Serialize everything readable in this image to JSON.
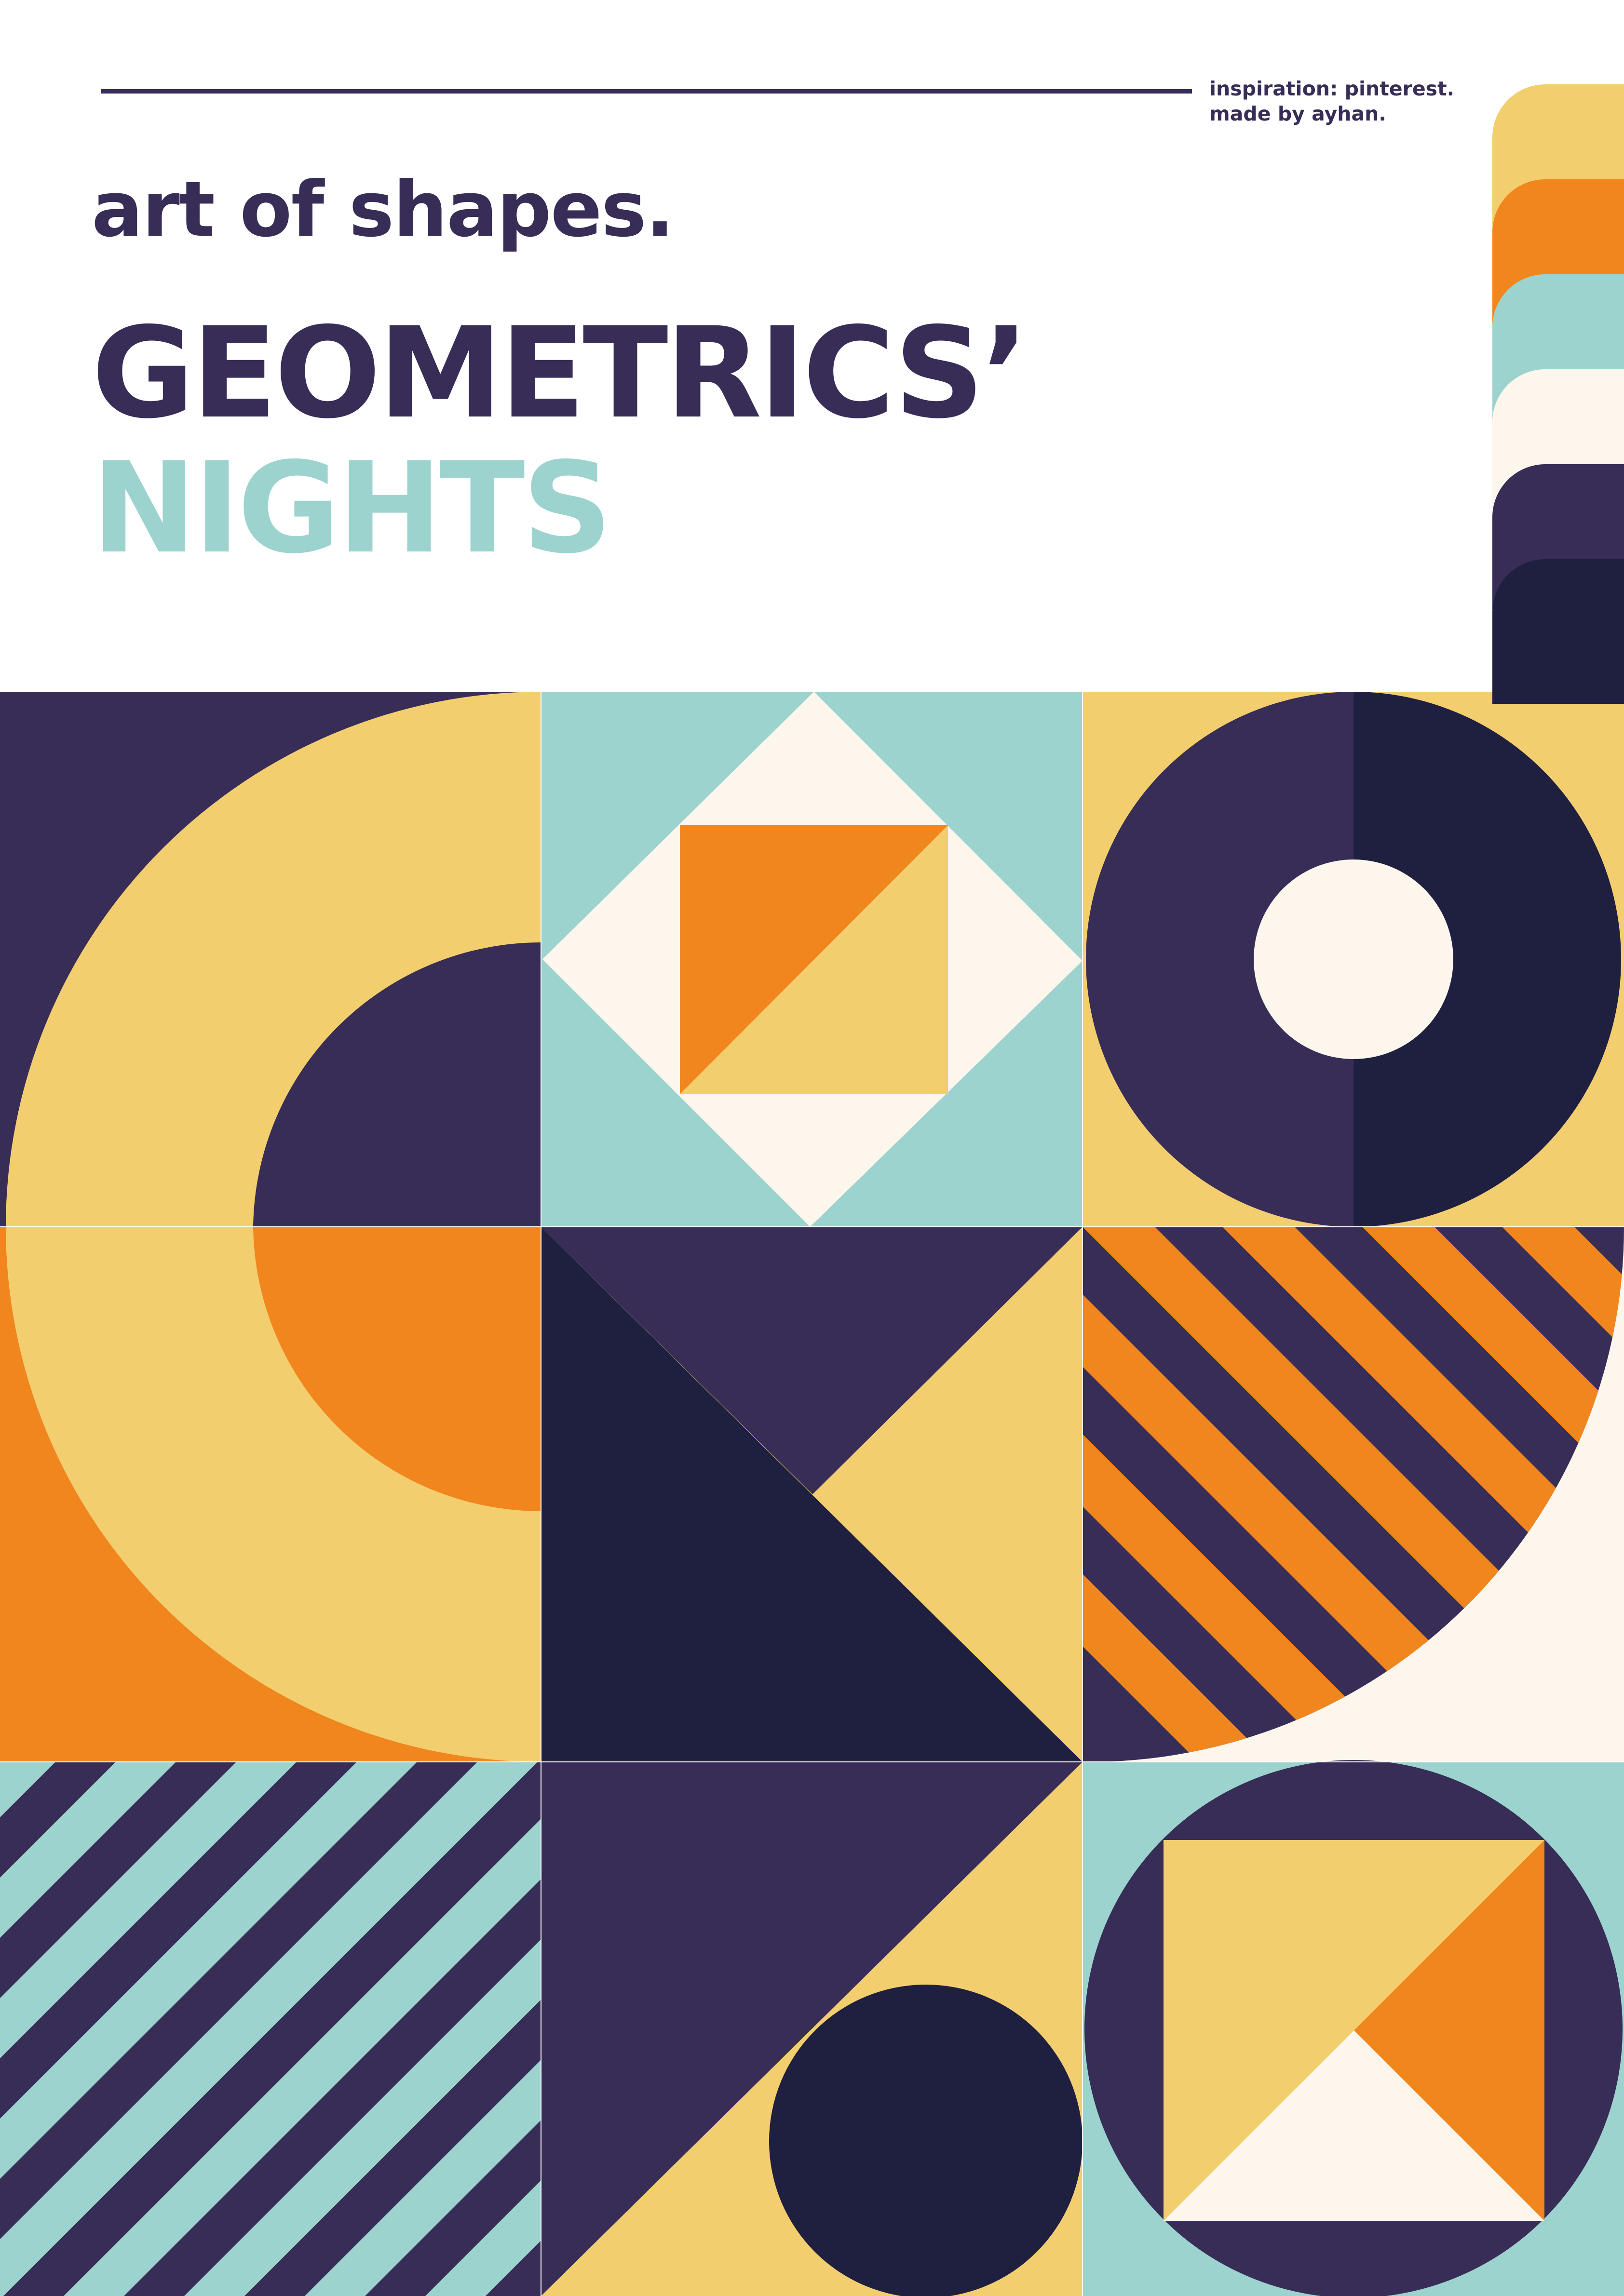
{
  "header": {
    "credit_line_1": "inspiration: pinterest.",
    "credit_line_2": "made by ayhan.",
    "subtitle": "art of shapes.",
    "title_line_1": "GEOMETRICS’",
    "title_line_2": "NIGHTS"
  },
  "colors": {
    "ink": "#372d57",
    "navy": "#1f2040",
    "yellow": "#f3ce6f",
    "orange": "#f0861d",
    "teal": "#9dd3ce",
    "cream": "#fdf6ec",
    "white": "#ffffff"
  },
  "palette": [
    {
      "name": "yellow-swatch",
      "color": "#f3ce6f"
    },
    {
      "name": "orange-swatch",
      "color": "#f0861d"
    },
    {
      "name": "teal-swatch",
      "color": "#9dd3ce"
    },
    {
      "name": "cream-swatch",
      "color": "#fdf6ec"
    },
    {
      "name": "purple-swatch",
      "color": "#372d57"
    },
    {
      "name": "navy-swatch",
      "color": "#1f2040"
    }
  ]
}
